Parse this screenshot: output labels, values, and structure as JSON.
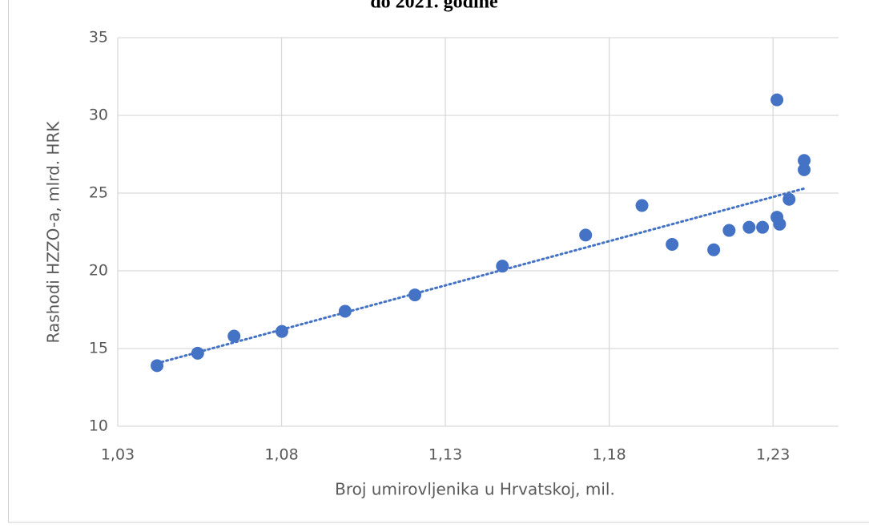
{
  "chart_data": {
    "type": "scatter",
    "title": "do 2021. godine",
    "x_label": "Broj umirovljenika u Hrvatskoj, mil.",
    "y_label": "Rashodi HZZO-a, mlrd. HRK",
    "color": "#4472c4",
    "trendline": true,
    "grid": true,
    "x": [
      1.042,
      1.0544,
      1.0655,
      1.0801,
      1.0994,
      1.1207,
      1.1474,
      1.1728,
      1.19,
      1.1992,
      1.2119,
      1.2166,
      1.2227,
      1.2268,
      1.2312,
      1.2312,
      1.232,
      1.2349,
      1.2395,
      1.2395
    ],
    "values": [
      13.9,
      14.7,
      15.8,
      16.1,
      17.4,
      18.45,
      20.3,
      22.3,
      24.2,
      21.7,
      21.35,
      22.6,
      22.8,
      22.8,
      31.0,
      23.45,
      23.0,
      24.6,
      26.5,
      27.1
    ],
    "xlim": [
      1.03,
      1.25
    ],
    "xticks": [
      {
        "value": 1.03,
        "label": "1,03"
      },
      {
        "value": 1.08,
        "label": "1,08"
      },
      {
        "value": 1.13,
        "label": "1,13"
      },
      {
        "value": 1.18,
        "label": "1,18"
      },
      {
        "value": 1.23,
        "label": "1,23"
      }
    ],
    "ylim": [
      10,
      35
    ],
    "yticks": [
      10,
      15,
      20,
      25,
      30,
      35
    ]
  }
}
